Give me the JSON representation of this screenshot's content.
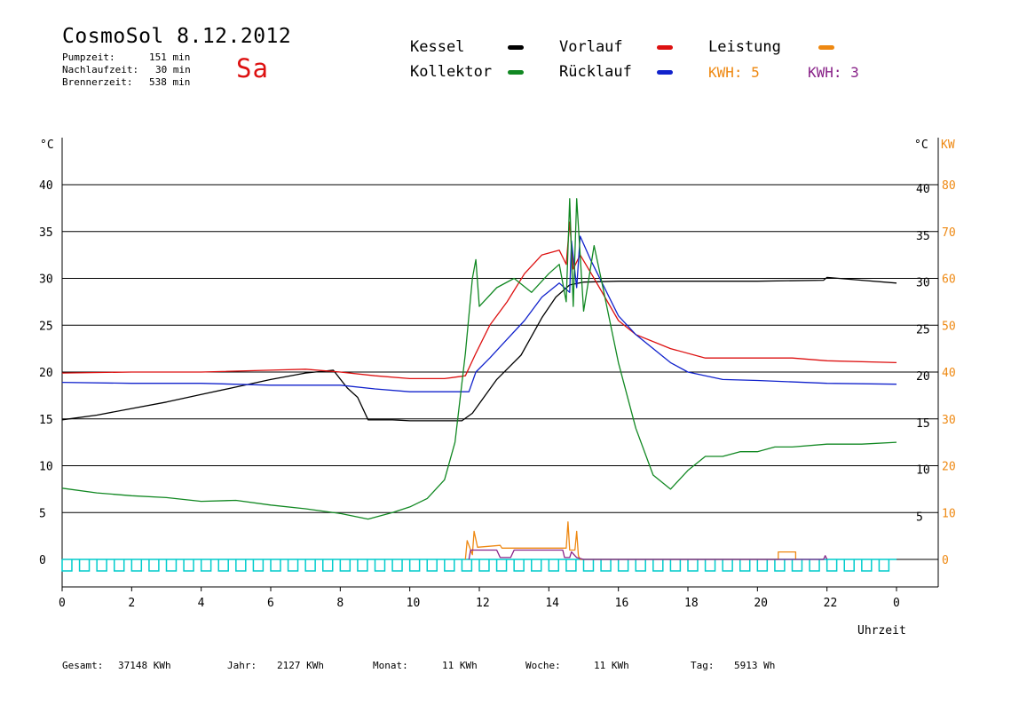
{
  "header": {
    "title": "CosmoSol 8.12.2012",
    "day": "Sa",
    "stats": [
      {
        "label": "Pumpzeit:",
        "value": "151 min"
      },
      {
        "label": "Nachlaufzeit:",
        "value": "30 min"
      },
      {
        "label": "Brennerzeit:",
        "value": "538 min"
      }
    ]
  },
  "legend": {
    "items": [
      {
        "label": "Kessel",
        "color": "#000000"
      },
      {
        "label": "Vorlauf",
        "color": "#dd1111"
      },
      {
        "label": "Leistung",
        "color": "#ee8811"
      },
      {
        "label": "Kollektor",
        "color": "#118822"
      },
      {
        "label": "Rücklauf",
        "color": "#1122cc"
      }
    ],
    "kwh": [
      {
        "label": "KWH:",
        "value": "5",
        "color": "#ee8811"
      },
      {
        "label": "KWH:",
        "value": "3",
        "color": "#882288"
      }
    ]
  },
  "footer": [
    {
      "label": "Gesamt:",
      "value": "37148 KWh"
    },
    {
      "label": "Jahr:",
      "value": "2127 KWh"
    },
    {
      "label": "Monat:",
      "value": "11 KWh"
    },
    {
      "label": "Woche:",
      "value": "11 KWh"
    },
    {
      "label": "Tag:",
      "value": "5913 Wh"
    }
  ],
  "chart_data": {
    "type": "line",
    "xlabel": "Uhrzeit",
    "ylabel_left": "°C",
    "ylabel_right": [
      "°C",
      "KW"
    ],
    "xlim": [
      0,
      24
    ],
    "ylim": [
      0,
      45
    ],
    "x_ticks": [
      "0",
      "2",
      "4",
      "6",
      "8",
      "10",
      "12",
      "14",
      "16",
      "18",
      "20",
      "22",
      "0"
    ],
    "y_ticks_left": [
      "0",
      "5",
      "10",
      "15",
      "20",
      "25",
      "30",
      "35",
      "40"
    ],
    "y_ticks_right_temp": [
      "5",
      "10",
      "15",
      "20",
      "25",
      "30",
      "35",
      "40"
    ],
    "y_ticks_right_kw": [
      "0",
      "10",
      "20",
      "30",
      "40",
      "50",
      "60",
      "70",
      "80"
    ],
    "kw_scale": 2,
    "grid": true,
    "series": [
      {
        "name": "Kessel",
        "color": "#000000",
        "points": [
          [
            0,
            14.9
          ],
          [
            1,
            15.4
          ],
          [
            2,
            16.1
          ],
          [
            3,
            16.8
          ],
          [
            4,
            17.6
          ],
          [
            5,
            18.4
          ],
          [
            6,
            19.2
          ],
          [
            7,
            19.9
          ],
          [
            7.8,
            20.2
          ],
          [
            8.2,
            18.3
          ],
          [
            8.5,
            17.3
          ],
          [
            8.8,
            14.9
          ],
          [
            9.5,
            14.9
          ],
          [
            10,
            14.8
          ],
          [
            11.5,
            14.8
          ],
          [
            11.8,
            15.6
          ],
          [
            12.5,
            19.2
          ],
          [
            13.2,
            21.8
          ],
          [
            13.8,
            25.8
          ],
          [
            14.2,
            28.0
          ],
          [
            14.6,
            29.3
          ],
          [
            15,
            29.6
          ],
          [
            16,
            29.7
          ],
          [
            18,
            29.7
          ],
          [
            20,
            29.7
          ],
          [
            21.9,
            29.8
          ],
          [
            22,
            30.1
          ],
          [
            23,
            29.8
          ],
          [
            24,
            29.5
          ]
        ]
      },
      {
        "name": "Vorlauf",
        "color": "#dd1111",
        "points": [
          [
            0,
            19.9
          ],
          [
            2,
            20.0
          ],
          [
            4,
            20.0
          ],
          [
            6,
            20.2
          ],
          [
            7,
            20.3
          ],
          [
            8,
            20.0
          ],
          [
            9,
            19.6
          ],
          [
            10,
            19.3
          ],
          [
            11,
            19.3
          ],
          [
            11.6,
            19.6
          ],
          [
            11.9,
            22.0
          ],
          [
            12.3,
            25.0
          ],
          [
            12.8,
            27.5
          ],
          [
            13.3,
            30.5
          ],
          [
            13.8,
            32.5
          ],
          [
            14.3,
            33.0
          ],
          [
            14.5,
            31.5
          ],
          [
            14.6,
            36.0
          ],
          [
            14.7,
            31.0
          ],
          [
            14.9,
            32.5
          ],
          [
            15.3,
            30.0
          ],
          [
            16,
            25.5
          ],
          [
            16.5,
            24.0
          ],
          [
            17.5,
            22.5
          ],
          [
            18.5,
            21.5
          ],
          [
            20,
            21.5
          ],
          [
            21,
            21.5
          ],
          [
            22,
            21.2
          ],
          [
            24,
            21.0
          ]
        ]
      },
      {
        "name": "Rücklauf",
        "color": "#1122cc",
        "points": [
          [
            0,
            18.9
          ],
          [
            2,
            18.8
          ],
          [
            4,
            18.8
          ],
          [
            6,
            18.6
          ],
          [
            8,
            18.6
          ],
          [
            9,
            18.2
          ],
          [
            10,
            17.9
          ],
          [
            11.7,
            17.9
          ],
          [
            11.9,
            20.0
          ],
          [
            12.3,
            21.5
          ],
          [
            12.8,
            23.5
          ],
          [
            13.3,
            25.5
          ],
          [
            13.8,
            28.0
          ],
          [
            14.3,
            29.5
          ],
          [
            14.6,
            28.5
          ],
          [
            14.65,
            34.0
          ],
          [
            14.8,
            29.0
          ],
          [
            14.9,
            34.5
          ],
          [
            15.2,
            32.0
          ],
          [
            16,
            26.0
          ],
          [
            16.5,
            24.0
          ],
          [
            17.5,
            21.0
          ],
          [
            18,
            20.0
          ],
          [
            19,
            19.2
          ],
          [
            20,
            19.1
          ],
          [
            22,
            18.8
          ],
          [
            24,
            18.7
          ]
        ]
      },
      {
        "name": "Kollektor",
        "color": "#118822",
        "points": [
          [
            0,
            7.6
          ],
          [
            1,
            7.1
          ],
          [
            2,
            6.8
          ],
          [
            3,
            6.6
          ],
          [
            4,
            6.2
          ],
          [
            5,
            6.3
          ],
          [
            6,
            5.8
          ],
          [
            7,
            5.4
          ],
          [
            8,
            4.9
          ],
          [
            8.8,
            4.3
          ],
          [
            9.5,
            5.0
          ],
          [
            10,
            5.6
          ],
          [
            10.5,
            6.5
          ],
          [
            11,
            8.5
          ],
          [
            11.3,
            12.5
          ],
          [
            11.6,
            22.0
          ],
          [
            11.8,
            30.0
          ],
          [
            11.9,
            32.0
          ],
          [
            12,
            27.0
          ],
          [
            12.5,
            29.0
          ],
          [
            13,
            30.0
          ],
          [
            13.5,
            28.5
          ],
          [
            14,
            30.5
          ],
          [
            14.3,
            31.5
          ],
          [
            14.5,
            27.5
          ],
          [
            14.6,
            38.5
          ],
          [
            14.7,
            27.0
          ],
          [
            14.8,
            38.5
          ],
          [
            15,
            26.5
          ],
          [
            15.3,
            33.5
          ],
          [
            15.5,
            30.0
          ],
          [
            16,
            21.0
          ],
          [
            16.5,
            14.0
          ],
          [
            17,
            9.0
          ],
          [
            17.5,
            7.5
          ],
          [
            18,
            9.5
          ],
          [
            18.5,
            11.0
          ],
          [
            19,
            11.0
          ],
          [
            19.5,
            11.5
          ],
          [
            20,
            11.5
          ],
          [
            20.5,
            12.0
          ],
          [
            21,
            12.0
          ],
          [
            22,
            12.3
          ],
          [
            23,
            12.3
          ],
          [
            24,
            12.5
          ]
        ]
      },
      {
        "name": "Leistung",
        "color": "#ee8811",
        "points": [
          [
            11.6,
            0
          ],
          [
            11.65,
            2.0
          ],
          [
            11.8,
            0.5
          ],
          [
            11.85,
            3.0
          ],
          [
            11.95,
            1.3
          ],
          [
            12.6,
            1.5
          ],
          [
            12.65,
            1.2
          ],
          [
            14,
            1.2
          ],
          [
            14.5,
            1.2
          ],
          [
            14.55,
            4.0
          ],
          [
            14.6,
            1.0
          ],
          [
            14.75,
            1.0
          ],
          [
            14.8,
            3.0
          ],
          [
            14.85,
            0.4
          ],
          [
            14.9,
            0
          ],
          [
            20.6,
            0
          ],
          [
            20.6,
            0.8
          ],
          [
            21.1,
            0.8
          ],
          [
            21.1,
            0
          ]
        ]
      },
      {
        "name": "KWH 3",
        "color": "#882288",
        "points": [
          [
            11.7,
            0
          ],
          [
            11.75,
            1.0
          ],
          [
            12.5,
            1.0
          ],
          [
            12.6,
            0.2
          ],
          [
            12.9,
            0.2
          ],
          [
            13,
            1.0
          ],
          [
            14.4,
            1.0
          ],
          [
            14.45,
            0.2
          ],
          [
            14.6,
            0.2
          ],
          [
            14.65,
            0.8
          ],
          [
            14.8,
            0.2
          ],
          [
            15,
            0
          ],
          [
            21.9,
            0
          ],
          [
            21.95,
            0.4
          ],
          [
            22,
            0
          ]
        ]
      }
    ],
    "pump_baseline_color": "#00cccc"
  }
}
